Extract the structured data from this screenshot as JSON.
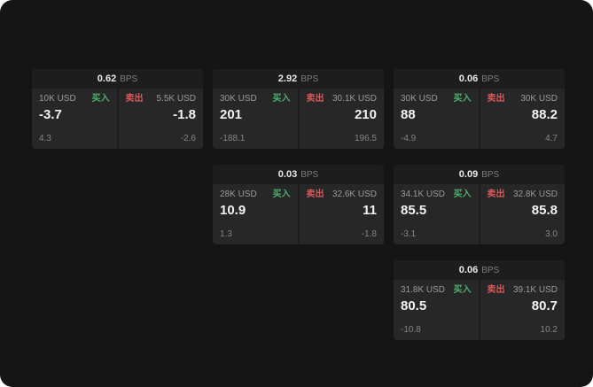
{
  "labels": {
    "bps_suffix": "BPS",
    "buy": "买入",
    "sell": "卖出"
  },
  "colors": {
    "buy": "#4fae70",
    "sell": "#d45a5a",
    "page_bg": "#151515",
    "card_bg": "#1d1d1d",
    "panel_bg": "#272727"
  },
  "cards": [
    {
      "bps": "0.62",
      "buy": {
        "amount": "10K USD",
        "value": "-3.7",
        "sub": "4.3"
      },
      "sell": {
        "amount": "5.5K USD",
        "value": "-1.8",
        "sub": "-2.6"
      }
    },
    {
      "bps": "2.92",
      "buy": {
        "amount": "30K USD",
        "value": "201",
        "sub": "-188.1"
      },
      "sell": {
        "amount": "30.1K USD",
        "value": "210",
        "sub": "196.5"
      }
    },
    {
      "bps": "0.06",
      "buy": {
        "amount": "30K USD",
        "value": "88",
        "sub": "-4.9"
      },
      "sell": {
        "amount": "30K USD",
        "value": "88.2",
        "sub": "4.7"
      }
    },
    {
      "bps": "0.03",
      "buy": {
        "amount": "28K USD",
        "value": "10.9",
        "sub": "1.3"
      },
      "sell": {
        "amount": "32.6K USD",
        "value": "11",
        "sub": "-1.8"
      }
    },
    {
      "bps": "0.09",
      "buy": {
        "amount": "34.1K USD",
        "value": "85.5",
        "sub": "-3.1"
      },
      "sell": {
        "amount": "32.8K USD",
        "value": "85.8",
        "sub": "3.0"
      }
    },
    {
      "bps": "0.06",
      "buy": {
        "amount": "31.8K USD",
        "value": "80.5",
        "sub": "-10.8"
      },
      "sell": {
        "amount": "39.1K USD",
        "value": "80.7",
        "sub": "10.2"
      }
    }
  ]
}
